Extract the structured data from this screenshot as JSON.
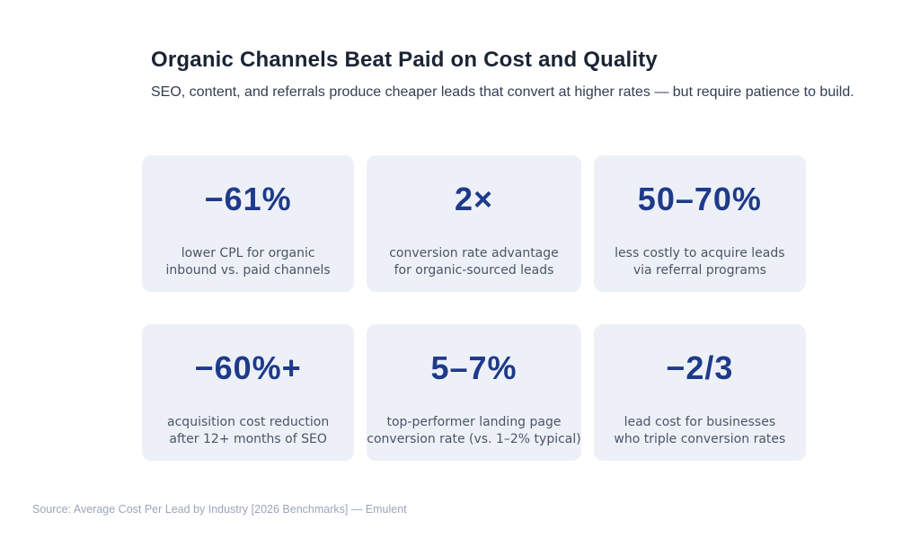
{
  "title": "Organic Channels Beat Paid on Cost and Quality",
  "subtitle": "SEO, content, and referrals produce cheaper leads that convert at higher rates — but require patience to build.",
  "source": "Source: Average Cost Per Lead by Industry [2026 Benchmarks] — Emulent",
  "colors": {
    "accent": "#1e3a8a",
    "card_bg": "#edf1f7",
    "title_text": "#1a2433",
    "body_text": "#4a5568",
    "source_text": "#9aa6bb"
  },
  "chart_data": {
    "type": "stat_cards",
    "title": "Organic Channels Beat Paid on Cost and Quality",
    "cards": [
      {
        "value": "−61%",
        "label": "lower CPL for organic\ninbound vs. paid channels"
      },
      {
        "value": "2×",
        "label": "conversion rate advantage\nfor organic-sourced leads"
      },
      {
        "value": "50–70%",
        "label": "less costly to acquire leads\nvia referral programs"
      },
      {
        "value": "−60%+",
        "label": "acquisition cost reduction\nafter 12+ months of SEO"
      },
      {
        "value": "5–7%",
        "label": "top-performer landing page\nconversion rate (vs. 1–2% typical)"
      },
      {
        "value": "−2/3",
        "label": "lead cost for businesses\nwho triple conversion rates"
      }
    ]
  }
}
